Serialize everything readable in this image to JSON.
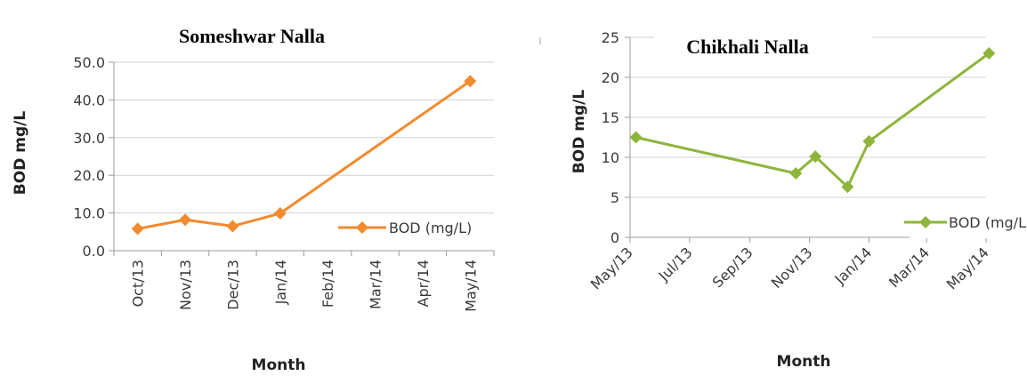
{
  "chart_data": [
    {
      "type": "line",
      "title": "Someshwar Nalla",
      "xlabel": "Month",
      "ylabel": "BOD mg/L",
      "categories": [
        "Oct/13",
        "Nov/13",
        "Dec/13",
        "Jan/14",
        "Feb/14",
        "Mar/14",
        "Apr/14",
        "May/14"
      ],
      "series": [
        {
          "name": "BOD (mg/L)",
          "color": "#f28a2e",
          "marker": "diamond",
          "x": [
            "Oct/13",
            "Nov/13",
            "Dec/13",
            "Jan/14",
            "May/14"
          ],
          "values": [
            5.8,
            8.2,
            6.5,
            9.9,
            45.0
          ]
        }
      ],
      "yticks": [
        "0.0",
        "10.0",
        "20.0",
        "30.0",
        "40.0",
        "50.0"
      ],
      "ylim": [
        0,
        50
      ],
      "grid": true,
      "legend": "right"
    },
    {
      "type": "line",
      "title": "Chikhali Nalla",
      "xlabel": "Month",
      "ylabel": "BOD mg/L",
      "categories": [
        "May/13",
        "Jul/13",
        "Sep/13",
        "Nov/13",
        "Jan/14",
        "Mar/14",
        "May/14"
      ],
      "series": [
        {
          "name": "BOD (mg/L)",
          "color": "#8db53c",
          "marker": "diamond",
          "x": [
            "2013-05-07",
            "2013-10-18",
            "2013-11-07",
            "2013-12-10",
            "2014-01-01",
            "2014-05-04"
          ],
          "values": [
            12.5,
            8.0,
            10.1,
            6.3,
            12.0,
            23.0
          ]
        }
      ],
      "yticks": [
        "0",
        "5",
        "10",
        "15",
        "20",
        "25"
      ],
      "ylim": [
        0,
        25
      ],
      "grid": true,
      "legend": "right"
    }
  ]
}
